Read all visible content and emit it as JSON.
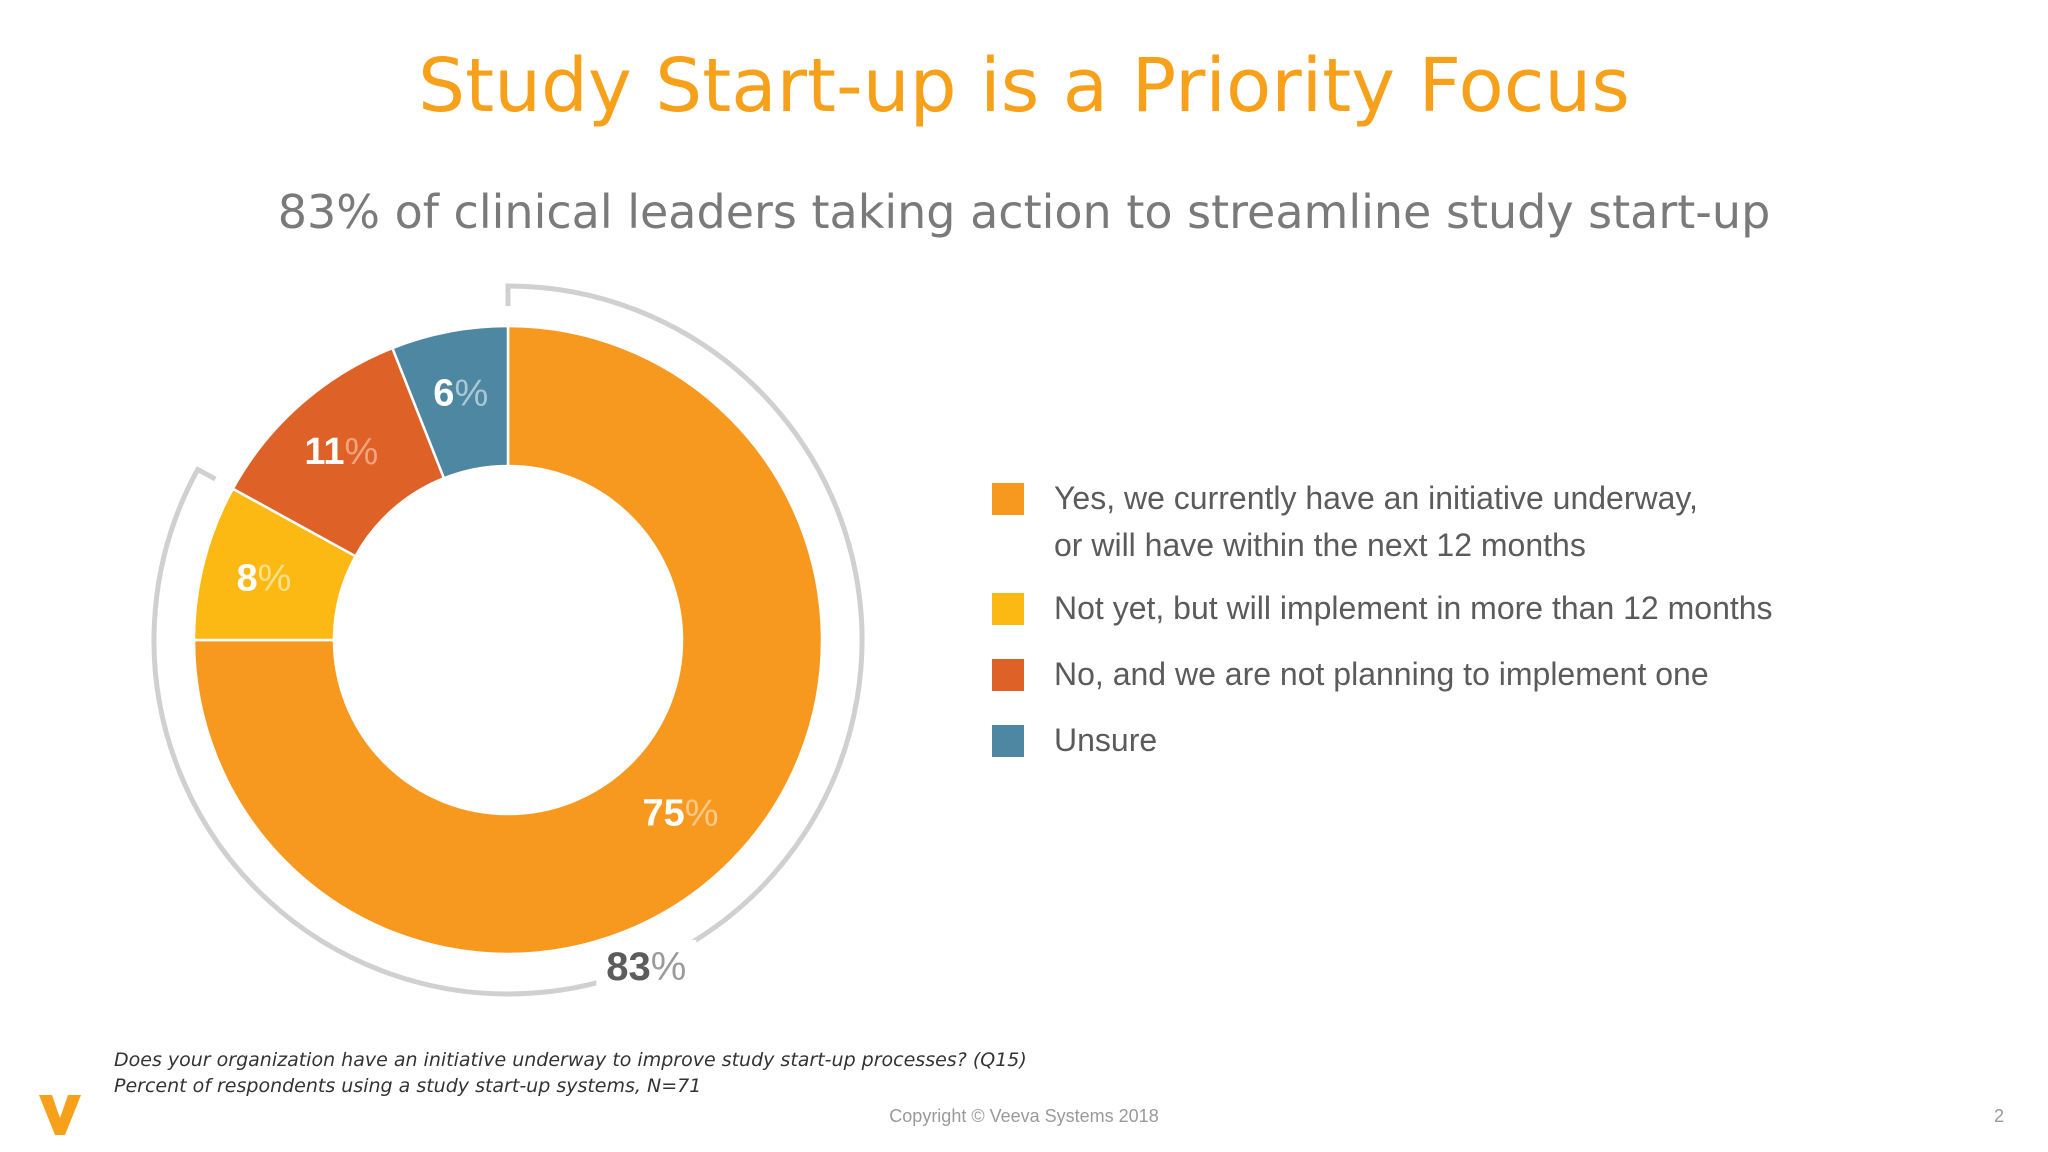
{
  "slide": {
    "title": "Study Start-up is a Priority Focus",
    "subtitle": "83% of clinical leaders taking action to streamline study start-up",
    "footnote_line1": "Does your organization have an initiative underway to improve study start-up processes? (Q15)",
    "footnote_line2": "Percent of respondents using a study start-up systems, N=71",
    "copyright": "Copyright © Veeva Systems 2018",
    "page_number": "2",
    "brand_color": "#F7A11A"
  },
  "chart_data": {
    "type": "pie",
    "style": "donut",
    "title": "",
    "categories": [
      "Yes, we currently have an initiative underway, or will have within the next 12 months",
      "Not yet, but will implement in more than 12 months",
      "No, and we are not planning to implement one",
      "Unsure"
    ],
    "values": [
      75,
      8,
      11,
      6
    ],
    "data_labels": [
      {
        "number": "75",
        "unit": "%"
      },
      {
        "number": "8",
        "unit": "%"
      },
      {
        "number": "11",
        "unit": "%"
      },
      {
        "number": "6",
        "unit": "%"
      }
    ],
    "colors": [
      "#F7991F",
      "#FDB913",
      "#DE6228",
      "#4E87A1"
    ],
    "bracket": {
      "covers": [
        0,
        1
      ],
      "label_number": "83",
      "label_unit": "%"
    },
    "legend": {
      "placement": "right",
      "items": [
        {
          "lines": [
            "Yes, we currently have an initiative underway,",
            "or will have within the next 12 months"
          ],
          "color": "#F7991F"
        },
        {
          "lines": [
            "Not yet, but will implement in more than 12 months"
          ],
          "color": "#FDB913"
        },
        {
          "lines": [
            "No, and we are not planning to implement one"
          ],
          "color": "#DE6228"
        },
        {
          "lines": [
            "Unsure"
          ],
          "color": "#4E87A1"
        }
      ]
    }
  }
}
